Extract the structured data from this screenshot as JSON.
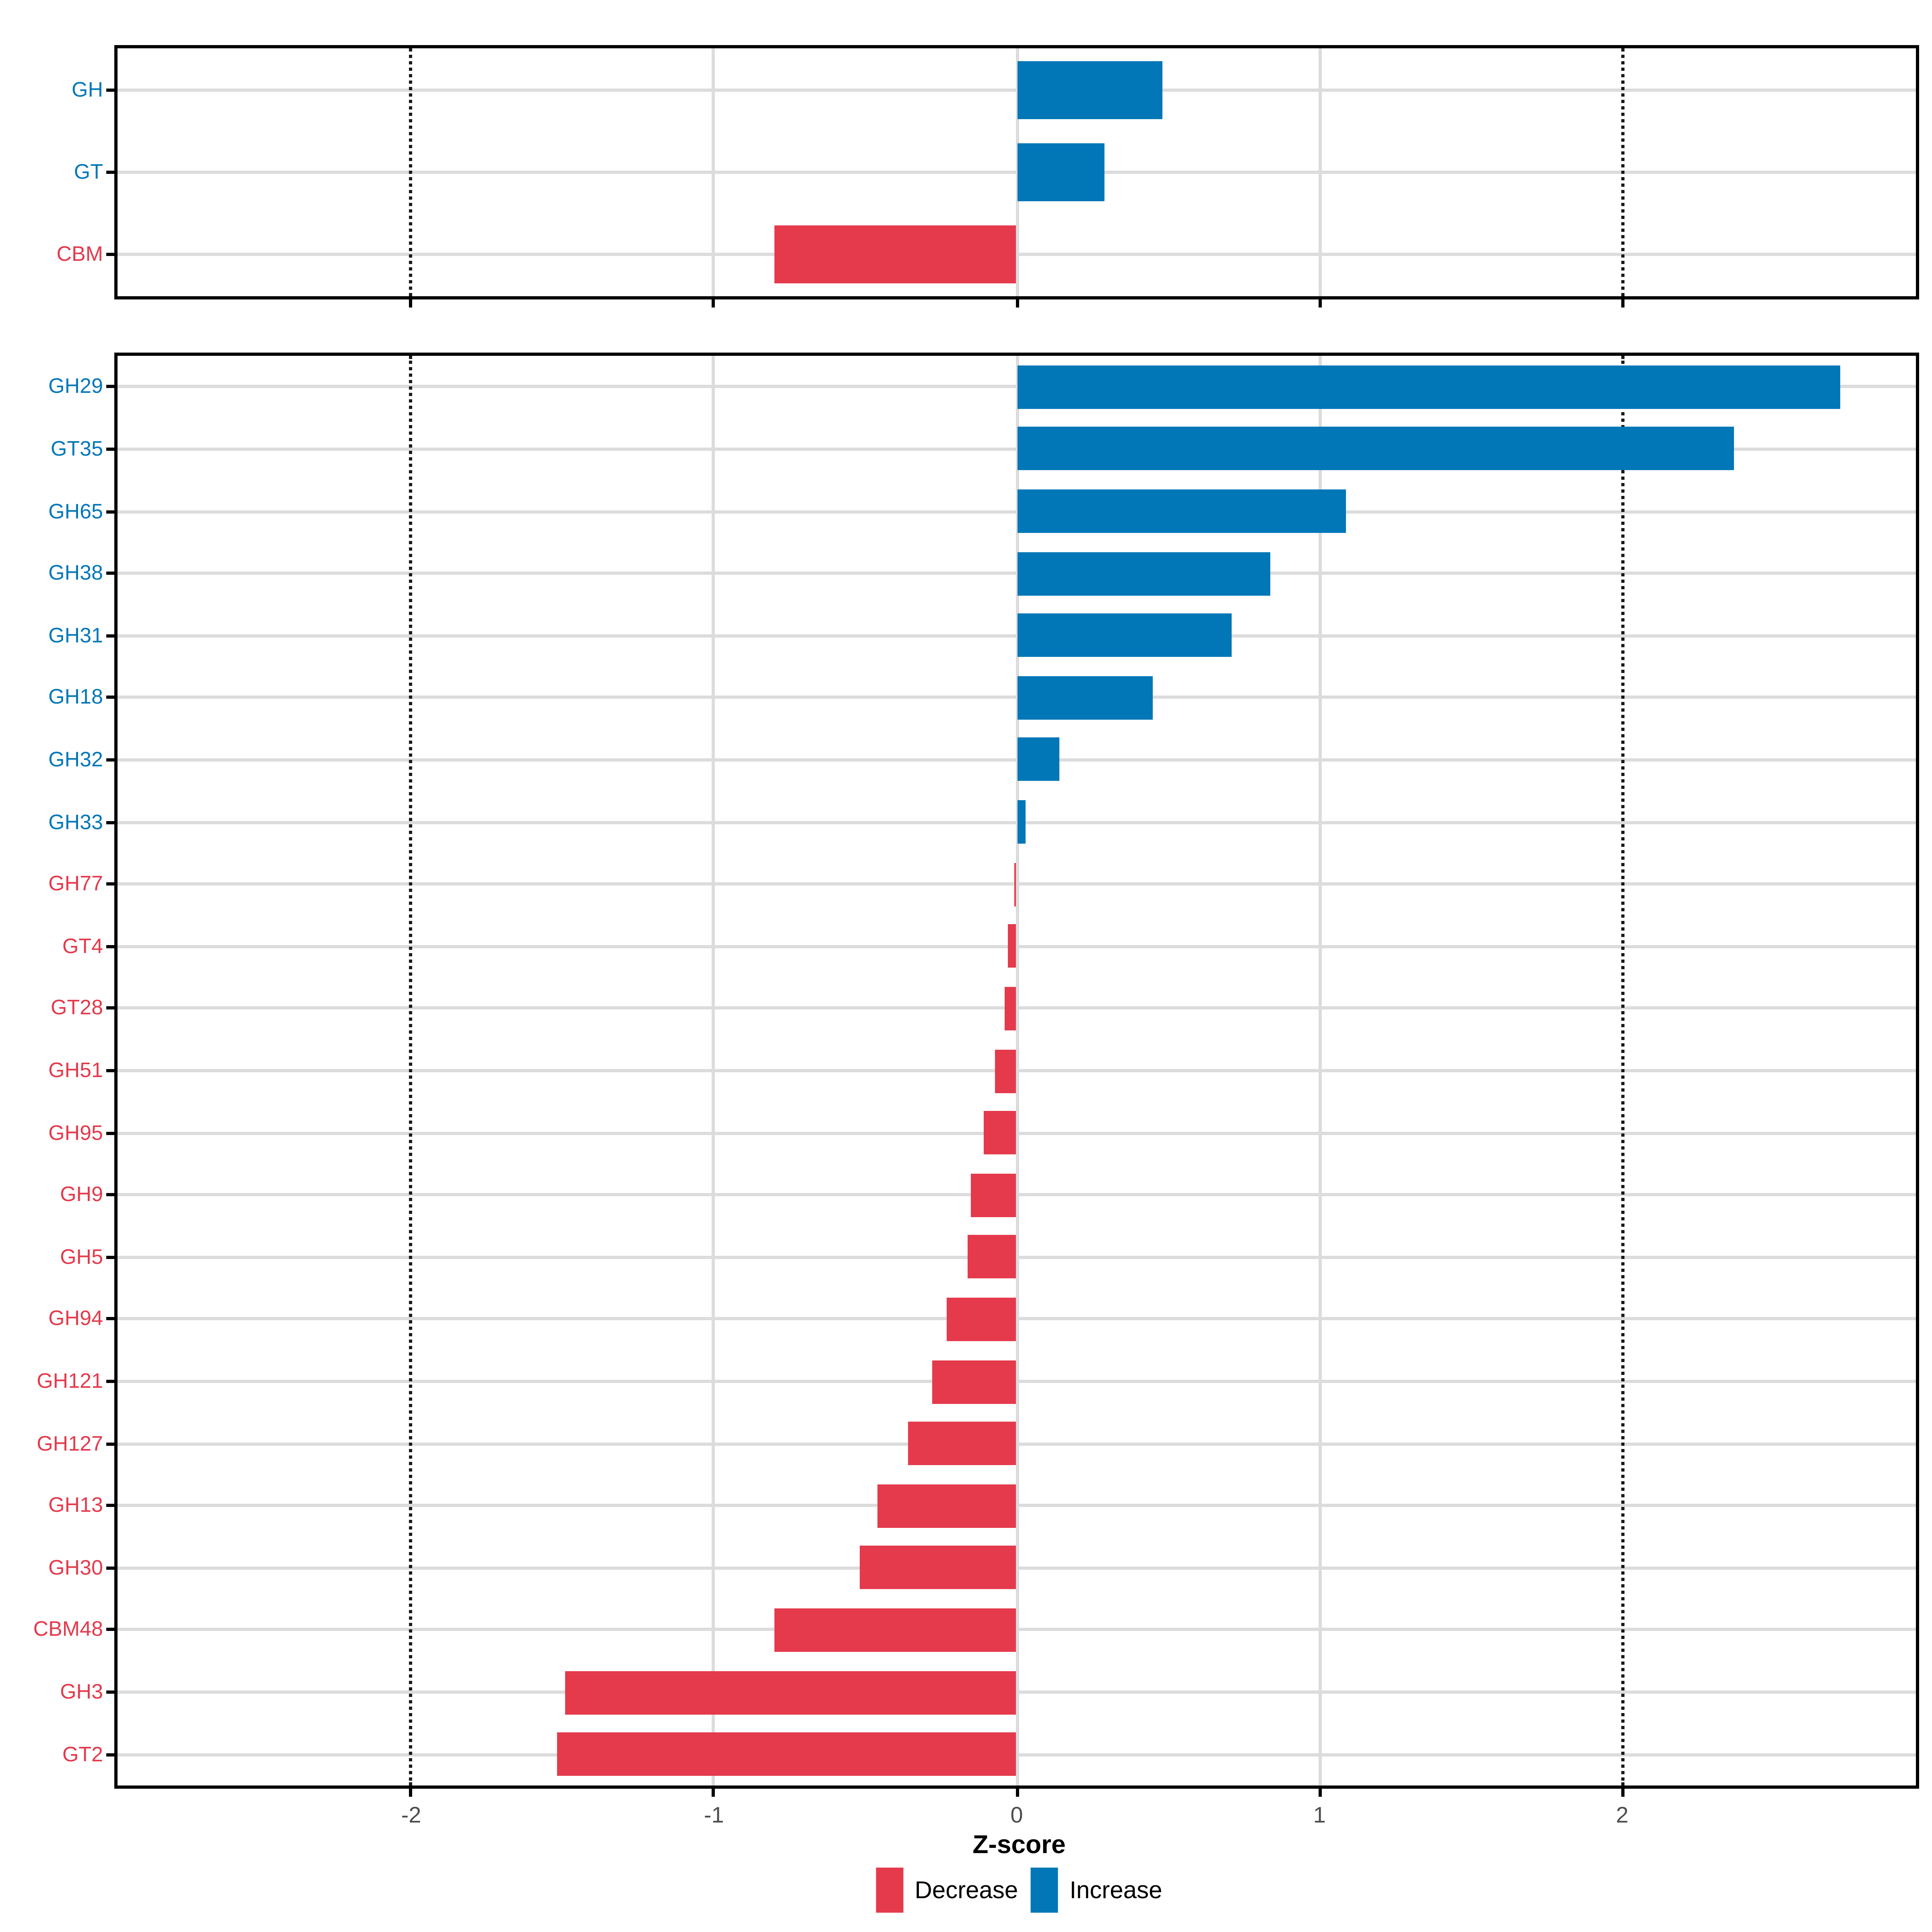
{
  "figure": {
    "xlabel": "Z-score",
    "x_tick_labels": [
      "-2",
      "-1",
      "0",
      "1",
      "2"
    ],
    "legend": [
      {
        "label": "Decrease",
        "color": "#e43a4c"
      },
      {
        "label": "Increase",
        "color": "#0277b7"
      }
    ],
    "colors": {
      "increase": "#0277b7",
      "decrease": "#e43a4c",
      "grid": "#dcdcdc",
      "tick_label": "#4d4d4d",
      "threshold": "#1a1a1a"
    }
  },
  "chart_data": [
    {
      "type": "bar",
      "orientation": "horizontal",
      "panel": "enzyme-classes",
      "categories": [
        "GH",
        "GT",
        "CBM"
      ],
      "values": [
        0.48,
        0.29,
        -0.8
      ],
      "xlabel": "Z-score",
      "xlim": [
        -2.97,
        2.97
      ],
      "x_ticks": [
        -2,
        -1,
        0,
        1,
        2
      ],
      "threshold_lines": [
        -2,
        2
      ],
      "grid": "major-only",
      "legend_position": "bottom"
    },
    {
      "type": "bar",
      "orientation": "horizontal",
      "panel": "cazyme-families",
      "categories": [
        "GH29",
        "GT35",
        "GH65",
        "GH38",
        "GH31",
        "GH18",
        "GH32",
        "GH33",
        "GH77",
        "GT4",
        "GT28",
        "GH51",
        "GH95",
        "GH9",
        "GH5",
        "GH94",
        "GH121",
        "GH127",
        "GH13",
        "GH30",
        "CBM48",
        "GH3",
        "GT2"
      ],
      "values": [
        2.72,
        2.37,
        1.09,
        0.84,
        0.71,
        0.45,
        0.14,
        0.03,
        -0.01,
        -0.03,
        -0.04,
        -0.07,
        -0.11,
        -0.15,
        -0.16,
        -0.23,
        -0.28,
        -0.36,
        -0.46,
        -0.52,
        -0.8,
        -1.49,
        -1.52
      ],
      "xlim": [
        -2.97,
        2.97
      ],
      "x_ticks": [
        -2,
        -1,
        0,
        1,
        2
      ],
      "threshold_lines": [
        -2,
        2
      ],
      "grid": "major-only"
    }
  ]
}
